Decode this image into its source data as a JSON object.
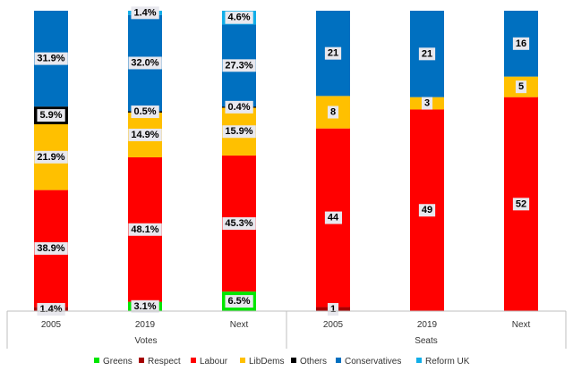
{
  "chart_data": {
    "type": "bar",
    "stacked": true,
    "groups": [
      {
        "name": "Votes",
        "categories": [
          "2005",
          "2019",
          "Next"
        ],
        "series": [
          {
            "name": "Greens",
            "values": [
              0,
              3.1,
              6.5
            ],
            "labels": [
              "",
              "3.1%",
              "6.5%"
            ]
          },
          {
            "name": "Respect",
            "values": [
              1.4,
              0,
              0
            ],
            "labels": [
              "1.4%",
              "",
              ""
            ]
          },
          {
            "name": "Labour",
            "values": [
              38.9,
              48.1,
              45.3
            ],
            "labels": [
              "38.9%",
              "48.1%",
              "45.3%"
            ]
          },
          {
            "name": "LibDems",
            "values": [
              21.9,
              14.9,
              15.9
            ],
            "labels": [
              "21.9%",
              "14.9%",
              "15.9%"
            ]
          },
          {
            "name": "Others",
            "values": [
              5.9,
              0.5,
              0.4
            ],
            "labels": [
              "5.9%",
              "0.5%",
              "0.4%"
            ]
          },
          {
            "name": "Conservatives",
            "values": [
              31.9,
              32.0,
              27.3
            ],
            "labels": [
              "31.9%",
              "32.0%",
              "27.3%"
            ]
          },
          {
            "name": "Reform UK",
            "values": [
              0,
              1.4,
              4.6
            ],
            "labels": [
              "",
              "1.4%",
              "4.6%"
            ]
          }
        ]
      },
      {
        "name": "Seats",
        "categories": [
          "2005",
          "2019",
          "Next"
        ],
        "series": [
          {
            "name": "Greens",
            "values": [
              0,
              0,
              0
            ],
            "labels": [
              "",
              "",
              ""
            ]
          },
          {
            "name": "Respect",
            "values": [
              1,
              0,
              0
            ],
            "labels": [
              "1",
              "",
              ""
            ]
          },
          {
            "name": "Labour",
            "values": [
              44,
              49,
              52
            ],
            "labels": [
              "44",
              "49",
              "52"
            ]
          },
          {
            "name": "LibDems",
            "values": [
              8,
              3,
              5
            ],
            "labels": [
              "8",
              "3",
              "5"
            ]
          },
          {
            "name": "Others",
            "values": [
              0,
              0,
              0
            ],
            "labels": [
              "",
              "",
              ""
            ]
          },
          {
            "name": "Conservatives",
            "values": [
              21,
              21,
              16
            ],
            "labels": [
              "21",
              "21",
              "16"
            ]
          },
          {
            "name": "Reform UK",
            "values": [
              0,
              0,
              0
            ],
            "labels": [
              "",
              "",
              ""
            ]
          }
        ]
      }
    ],
    "legend": {
      "placement": "bottom",
      "entries": [
        "Greens",
        "Respect",
        "Labour",
        "LibDems",
        "Others",
        "Conservatives",
        "Reform UK"
      ]
    },
    "grid": false,
    "colors": {
      "Greens": "#00e600",
      "Respect": "#a50000",
      "Labour": "#ff0000",
      "LibDems": "#ffc000",
      "Others": "#000000",
      "Conservatives": "#0070c0",
      "Reform UK": "#12aee8"
    }
  }
}
